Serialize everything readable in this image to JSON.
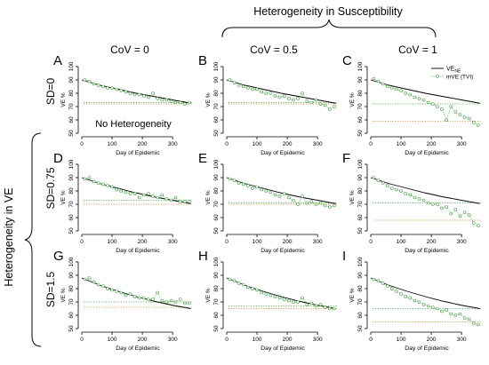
{
  "figure": {
    "top_title": "Heterogeneity in Susceptibility",
    "left_title": "Heterogeneity in VE",
    "column_labels": [
      "CoV = 0",
      "CoV = 0.5",
      "CoV = 1"
    ],
    "row_labels": [
      "SD=0",
      "SD=0.75",
      "SD=1.5"
    ],
    "legend": {
      "line_label_main": "VE",
      "line_label_sub": "NE",
      "points_label": "mVE (TVI)"
    },
    "annotation": "No Heterogeneity",
    "colors": {
      "line": "#000000",
      "points": "#3a9a3a",
      "dot_green": "#6fb46f",
      "dot_orange": "#d9a35a"
    }
  },
  "chart_data": [
    {
      "type": "line",
      "panel": "A",
      "xlabel": "Day of Epidemic",
      "ylabel": "VE %",
      "xlim": [
        0,
        370
      ],
      "ylim": [
        50,
        100
      ],
      "xticks": [
        0,
        100,
        200,
        300
      ],
      "yticks": [
        50,
        60,
        70,
        80,
        90,
        100
      ],
      "series": [
        {
          "name": "VE_NE",
          "style": "line",
          "x": [
            0,
            60,
            120,
            180,
            240,
            300,
            360
          ],
          "y": [
            90,
            86,
            83,
            80,
            77.5,
            75,
            72.5
          ]
        },
        {
          "name": "mVE (TVI)",
          "style": "points",
          "x": [
            10,
            25,
            40,
            55,
            70,
            85,
            100,
            115,
            130,
            145,
            160,
            175,
            190,
            205,
            220,
            235,
            250,
            265,
            280,
            295,
            310,
            325,
            340,
            355
          ],
          "y": [
            90,
            89,
            87,
            86,
            85,
            84,
            84,
            83,
            82,
            81,
            80,
            79,
            79,
            78,
            77,
            80,
            76,
            75,
            75,
            74,
            73,
            73,
            72,
            73
          ]
        },
        {
          "name": "reference green",
          "style": "dotted",
          "y": 73
        },
        {
          "name": "reference orange",
          "style": "dotted",
          "y": 72
        }
      ]
    },
    {
      "type": "line",
      "panel": "B",
      "xlabel": "Day of Epidemic",
      "ylabel": "VE %",
      "xlim": [
        0,
        370
      ],
      "ylim": [
        50,
        100
      ],
      "xticks": [
        0,
        100,
        200,
        300
      ],
      "yticks": [
        50,
        60,
        70,
        80,
        90,
        100
      ],
      "series": [
        {
          "name": "VE_NE",
          "style": "line",
          "x": [
            0,
            60,
            120,
            180,
            240,
            300,
            360
          ],
          "y": [
            90,
            86,
            83,
            80,
            77.5,
            75,
            72.5
          ]
        },
        {
          "name": "mVE (TVI)",
          "style": "points",
          "x": [
            10,
            25,
            40,
            55,
            70,
            85,
            100,
            115,
            130,
            145,
            160,
            175,
            190,
            205,
            220,
            235,
            250,
            265,
            280,
            295,
            310,
            325,
            340,
            355
          ],
          "y": [
            90,
            88,
            86,
            85,
            84,
            83,
            83,
            81,
            80,
            80,
            78,
            77,
            78,
            76,
            75,
            76,
            80,
            74,
            73,
            75,
            72,
            71,
            68,
            70
          ]
        },
        {
          "name": "reference green",
          "style": "dotted",
          "y": 73
        },
        {
          "name": "reference orange",
          "style": "dotted",
          "y": 72
        }
      ]
    },
    {
      "type": "line",
      "panel": "C",
      "xlabel": "Day of Epidemic",
      "ylabel": "VE %",
      "xlim": [
        0,
        370
      ],
      "ylim": [
        50,
        100
      ],
      "xticks": [
        0,
        100,
        200,
        300
      ],
      "yticks": [
        50,
        60,
        70,
        80,
        90,
        100
      ],
      "series": [
        {
          "name": "VE_NE",
          "style": "line",
          "x": [
            0,
            60,
            120,
            180,
            240,
            300,
            360
          ],
          "y": [
            90,
            86,
            83,
            80,
            77.5,
            75,
            72.5
          ]
        },
        {
          "name": "mVE (TVI)",
          "style": "points",
          "x": [
            10,
            25,
            40,
            55,
            70,
            85,
            100,
            115,
            130,
            145,
            160,
            175,
            190,
            205,
            220,
            235,
            250,
            265,
            280,
            295,
            310,
            325,
            340,
            355
          ],
          "y": [
            91,
            89,
            87,
            85,
            84,
            83,
            82,
            80,
            79,
            77,
            76,
            75,
            73,
            72,
            70,
            68,
            60,
            70,
            66,
            64,
            62,
            61,
            58,
            56
          ]
        },
        {
          "name": "reference green",
          "style": "dotted",
          "y": 72
        },
        {
          "name": "reference orange",
          "style": "dotted",
          "y": 59
        }
      ]
    },
    {
      "type": "line",
      "panel": "D",
      "xlabel": "Day of Epidemic",
      "ylabel": "VE %",
      "xlim": [
        0,
        370
      ],
      "ylim": [
        50,
        100
      ],
      "xticks": [
        0,
        100,
        200,
        300
      ],
      "yticks": [
        50,
        60,
        70,
        80,
        90,
        100
      ],
      "series": [
        {
          "name": "VE_NE",
          "style": "line",
          "x": [
            0,
            60,
            120,
            180,
            240,
            300,
            360
          ],
          "y": [
            90,
            85.5,
            82,
            78.5,
            75.5,
            73,
            70.5
          ]
        },
        {
          "name": "mVE (TVI)",
          "style": "points",
          "x": [
            10,
            25,
            40,
            55,
            70,
            85,
            100,
            115,
            130,
            145,
            160,
            175,
            190,
            205,
            220,
            235,
            250,
            265,
            280,
            295,
            310,
            325,
            340,
            355
          ],
          "y": [
            89,
            90,
            87,
            86,
            85,
            84,
            83,
            81,
            80,
            79,
            78,
            78,
            75,
            77,
            78,
            76,
            75,
            77,
            74,
            73,
            75,
            72,
            72,
            72
          ]
        },
        {
          "name": "reference green",
          "style": "dotted",
          "y": 73
        },
        {
          "name": "reference orange",
          "style": "dotted",
          "y": 70
        }
      ]
    },
    {
      "type": "line",
      "panel": "E",
      "xlabel": "Day of Epidemic",
      "ylabel": "VE %",
      "xlim": [
        0,
        370
      ],
      "ylim": [
        50,
        100
      ],
      "xticks": [
        0,
        100,
        200,
        300
      ],
      "yticks": [
        50,
        60,
        70,
        80,
        90,
        100
      ],
      "series": [
        {
          "name": "VE_NE",
          "style": "line",
          "x": [
            0,
            60,
            120,
            180,
            240,
            300,
            360
          ],
          "y": [
            90,
            85.5,
            82,
            78.5,
            75.5,
            73,
            70.5
          ]
        },
        {
          "name": "mVE (TVI)",
          "style": "points",
          "x": [
            10,
            25,
            40,
            55,
            70,
            85,
            100,
            115,
            130,
            145,
            160,
            175,
            190,
            205,
            220,
            235,
            250,
            265,
            280,
            295,
            310,
            325,
            340,
            355
          ],
          "y": [
            89,
            88,
            86,
            85,
            84,
            82,
            83,
            81,
            80,
            79,
            77,
            76,
            78,
            75,
            73,
            70,
            76,
            71,
            72,
            70,
            71,
            69,
            68,
            69
          ]
        },
        {
          "name": "reference green",
          "style": "dotted",
          "y": 71
        },
        {
          "name": "reference orange",
          "style": "dotted",
          "y": 70
        }
      ]
    },
    {
      "type": "line",
      "panel": "F",
      "xlabel": "Day of Epidemic",
      "ylabel": "VE %",
      "xlim": [
        0,
        370
      ],
      "ylim": [
        50,
        100
      ],
      "xticks": [
        0,
        100,
        200,
        300
      ],
      "yticks": [
        50,
        60,
        70,
        80,
        90,
        100
      ],
      "series": [
        {
          "name": "VE_NE",
          "style": "line",
          "x": [
            0,
            60,
            120,
            180,
            240,
            300,
            360
          ],
          "y": [
            90,
            85.5,
            82,
            78.5,
            75.5,
            73,
            70.5
          ]
        },
        {
          "name": "mVE (TVI)",
          "style": "points",
          "x": [
            10,
            25,
            40,
            55,
            70,
            85,
            100,
            115,
            130,
            145,
            160,
            175,
            190,
            205,
            220,
            235,
            250,
            265,
            280,
            295,
            310,
            325,
            340,
            355
          ],
          "y": [
            90,
            88,
            86,
            84,
            82,
            81,
            80,
            78,
            77,
            75,
            74,
            73,
            71,
            70,
            70,
            67,
            68,
            63,
            66,
            61,
            64,
            62,
            56,
            54
          ]
        },
        {
          "name": "reference green",
          "style": "dotted",
          "y": 71
        },
        {
          "name": "reference orange",
          "style": "dotted",
          "y": 58
        }
      ]
    },
    {
      "type": "line",
      "panel": "G",
      "xlabel": "Day of Epidemic",
      "ylabel": "VE %",
      "xlim": [
        0,
        370
      ],
      "ylim": [
        50,
        100
      ],
      "xticks": [
        0,
        100,
        200,
        300
      ],
      "yticks": [
        50,
        60,
        70,
        80,
        90,
        100
      ],
      "series": [
        {
          "name": "VE_NE",
          "style": "line",
          "x": [
            0,
            60,
            120,
            180,
            240,
            300,
            360
          ],
          "y": [
            88,
            82.5,
            78,
            74,
            70.5,
            67.5,
            65
          ]
        },
        {
          "name": "mVE (TVI)",
          "style": "points",
          "x": [
            10,
            25,
            40,
            55,
            70,
            85,
            100,
            115,
            130,
            145,
            160,
            175,
            190,
            205,
            220,
            235,
            250,
            265,
            280,
            295,
            310,
            325,
            340,
            355
          ],
          "y": [
            87,
            88,
            85,
            83,
            82,
            80,
            79,
            78,
            77,
            75,
            76,
            74,
            73,
            73,
            72,
            72,
            77,
            71,
            70,
            71,
            70,
            72,
            69,
            69
          ]
        },
        {
          "name": "reference green",
          "style": "dotted",
          "y": 70
        },
        {
          "name": "reference orange",
          "style": "dotted",
          "y": 66
        }
      ]
    },
    {
      "type": "line",
      "panel": "H",
      "xlabel": "Day of Epidemic",
      "ylabel": "VE %",
      "xlim": [
        0,
        370
      ],
      "ylim": [
        50,
        100
      ],
      "xticks": [
        0,
        100,
        200,
        300
      ],
      "yticks": [
        50,
        60,
        70,
        80,
        90,
        100
      ],
      "series": [
        {
          "name": "VE_NE",
          "style": "line",
          "x": [
            0,
            60,
            120,
            180,
            240,
            300,
            360
          ],
          "y": [
            88,
            82.5,
            78,
            74,
            70.5,
            67.5,
            65
          ]
        },
        {
          "name": "mVE (TVI)",
          "style": "points",
          "x": [
            10,
            25,
            40,
            55,
            70,
            85,
            100,
            115,
            130,
            145,
            160,
            175,
            190,
            205,
            220,
            235,
            250,
            265,
            280,
            295,
            310,
            325,
            340,
            355
          ],
          "y": [
            87,
            86,
            84,
            83,
            81,
            80,
            79,
            77,
            76,
            75,
            74,
            73,
            72,
            71,
            70,
            70,
            73,
            68,
            69,
            67,
            68,
            66,
            65,
            65
          ]
        },
        {
          "name": "reference green",
          "style": "dotted",
          "y": 67
        },
        {
          "name": "reference orange",
          "style": "dotted",
          "y": 65
        }
      ]
    },
    {
      "type": "line",
      "panel": "I",
      "xlabel": "Day of Epidemic",
      "ylabel": "VE %",
      "xlim": [
        0,
        370
      ],
      "ylim": [
        50,
        100
      ],
      "xticks": [
        0,
        100,
        200,
        300
      ],
      "yticks": [
        50,
        60,
        70,
        80,
        90,
        100
      ],
      "series": [
        {
          "name": "VE_NE",
          "style": "line",
          "x": [
            0,
            60,
            120,
            180,
            240,
            300,
            360
          ],
          "y": [
            88,
            82.5,
            78,
            74,
            70.5,
            67.5,
            65
          ]
        },
        {
          "name": "mVE (TVI)",
          "style": "points",
          "x": [
            10,
            25,
            40,
            55,
            70,
            85,
            100,
            115,
            130,
            145,
            160,
            175,
            190,
            205,
            220,
            235,
            250,
            265,
            280,
            295,
            310,
            325,
            340,
            355
          ],
          "y": [
            87,
            86,
            84,
            82,
            80,
            78,
            76,
            74,
            73,
            71,
            70,
            68,
            67,
            66,
            65,
            63,
            64,
            61,
            60,
            61,
            58,
            57,
            54,
            53
          ]
        },
        {
          "name": "reference green",
          "style": "dotted",
          "y": 65
        },
        {
          "name": "reference orange",
          "style": "dotted",
          "y": 55
        }
      ]
    }
  ]
}
